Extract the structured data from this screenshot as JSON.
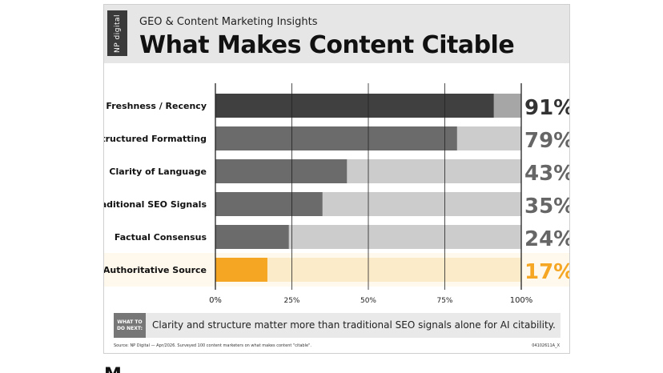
{
  "header": {
    "brand": "NP digital",
    "subtitle": "GEO & Content Marketing Insights",
    "title": "What Makes Content Citable"
  },
  "chart_data": {
    "type": "bar",
    "orientation": "horizontal",
    "categories": [
      "Freshness / Recency",
      "Structured Formatting",
      "Clarity of Language",
      "Traditional SEO Signals",
      "Factual Consensus",
      "Authoritative Source"
    ],
    "values": [
      91,
      79,
      43,
      35,
      24,
      17
    ],
    "value_labels": [
      "91%",
      "79%",
      "43%",
      "35%",
      "24%",
      "17%"
    ],
    "x_ticks": [
      "0%",
      "25%",
      "50%",
      "75%",
      "100%"
    ],
    "xlim": [
      0,
      100
    ],
    "grid": true,
    "highlight_category": "Authoritative Source",
    "colors": {
      "bars": [
        "#404040",
        "#6b6b6b",
        "#6b6b6b",
        "#6b6b6b",
        "#6b6b6b",
        "#f5a623"
      ],
      "tracks": [
        "#a6a6a6",
        "#cccccc",
        "#cccccc",
        "#cccccc",
        "#cccccc",
        "#fcebc8"
      ],
      "labels": [
        "#333333",
        "#666666",
        "#666666",
        "#666666",
        "#666666",
        "#f5a623"
      ],
      "highlight_band": "#fff8ec"
    }
  },
  "footer": {
    "next_label": "WHAT TO DO NEXT:",
    "next_text": "Clarity and structure matter more than traditional SEO signals alone for AI citability.",
    "source": "Source: NP Digital — Apr/2026. Surveyed 100 content marketers on what makes content \"citable\".",
    "code": "04102611A_X"
  }
}
